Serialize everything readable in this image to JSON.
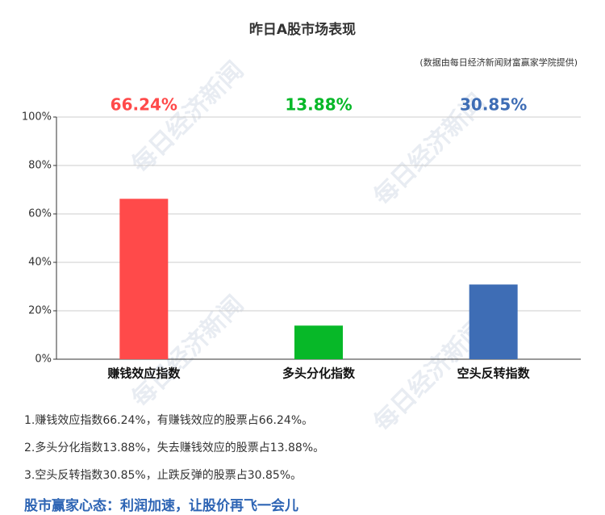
{
  "chart_data": {
    "type": "bar",
    "title": "昨日A股市场表现",
    "subtitle": "(数据由每日经济新闻财富赢家学院提供)",
    "categories": [
      "赚钱效应指数",
      "多头分化指数",
      "空头反转指数"
    ],
    "values": [
      66.24,
      13.88,
      30.85
    ],
    "value_labels": [
      "66.24%",
      "13.88%",
      "30.85%"
    ],
    "colors": [
      "#ff4a4a",
      "#07b828",
      "#3e6db5"
    ],
    "ylim": [
      0,
      100
    ],
    "yticks": [
      {
        "value": 0,
        "label": "0%"
      },
      {
        "value": 20,
        "label": "20%"
      },
      {
        "value": 40,
        "label": "40%"
      },
      {
        "value": 60,
        "label": "60%"
      },
      {
        "value": 80,
        "label": "80%"
      },
      {
        "value": 100,
        "label": "100%"
      }
    ],
    "grid": true
  },
  "notes": [
    "1.赚钱效应指数66.24%，有赚钱效应的股票占66.24%。",
    "2.多头分化指数13.88%，失去赚钱效应的股票占13.88%。",
    "3.空头反转指数30.85%，止跌反弹的股票占30.85%。"
  ],
  "headline": "股市赢家心态：利润加速，让股价再飞一会儿",
  "watermark": "每日经济新闻"
}
